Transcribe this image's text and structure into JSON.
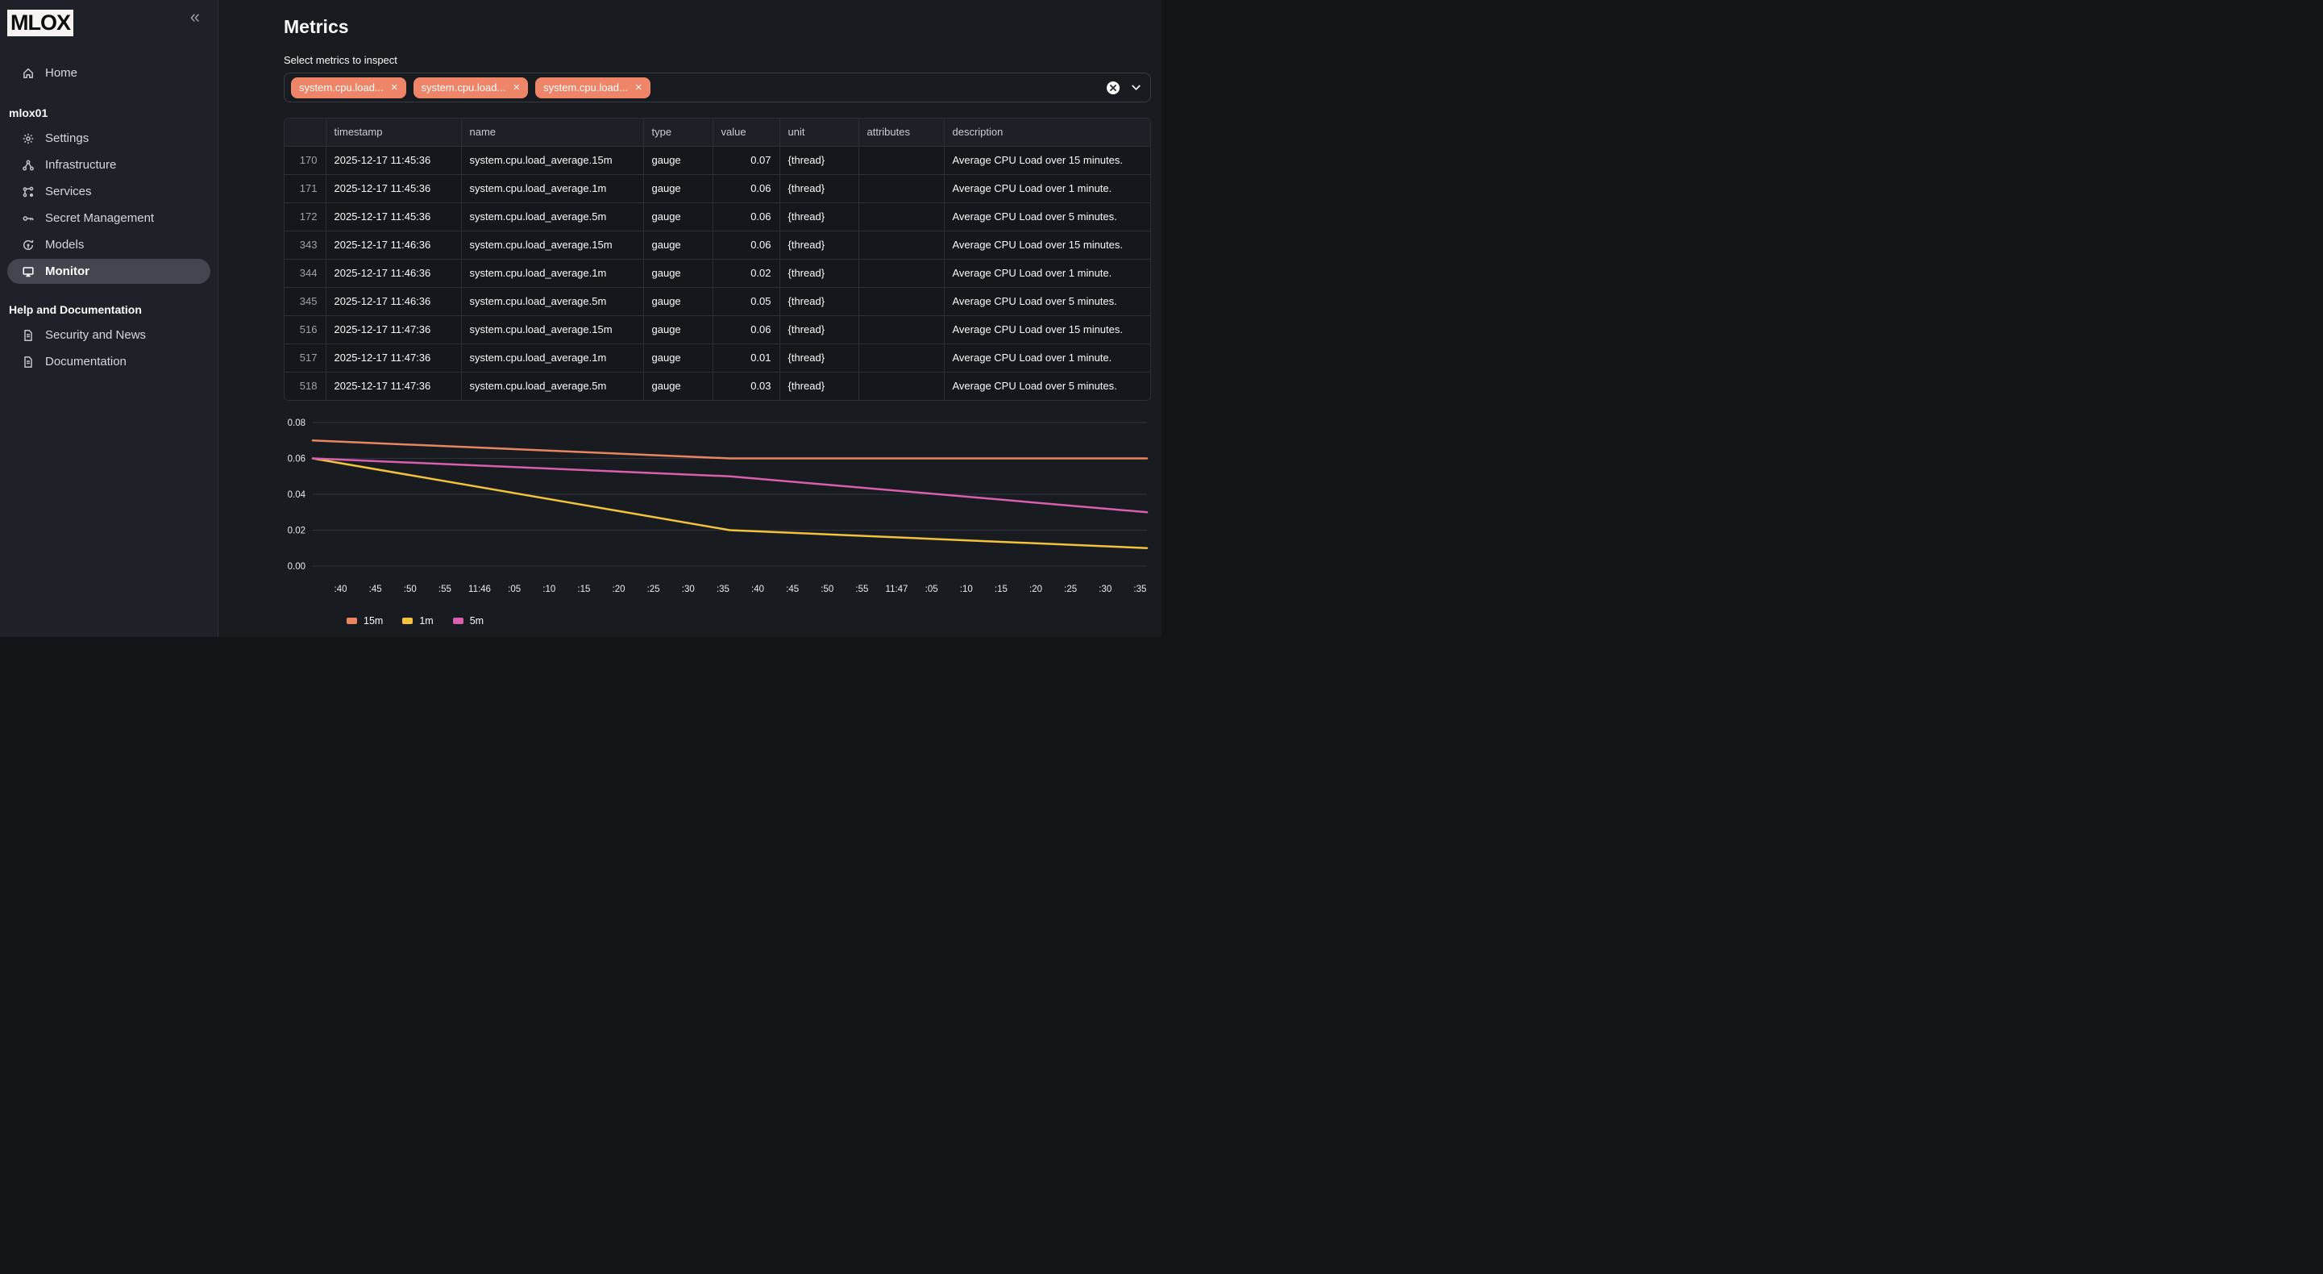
{
  "app": {
    "logo_text": "MLOX",
    "collapse_icon": "«"
  },
  "sidebar": {
    "home": {
      "label": "Home"
    },
    "sections": [
      {
        "header": "mlox01",
        "items": [
          {
            "label": "Settings",
            "icon": "gear-icon",
            "selected": false
          },
          {
            "label": "Infrastructure",
            "icon": "network-icon",
            "selected": false
          },
          {
            "label": "Services",
            "icon": "workflow-icon",
            "selected": false
          },
          {
            "label": "Secret Management",
            "icon": "key-icon",
            "selected": false
          },
          {
            "label": "Models",
            "icon": "model-icon",
            "selected": false
          },
          {
            "label": "Monitor",
            "icon": "monitor-icon",
            "selected": true
          }
        ]
      },
      {
        "header": "Help and Documentation",
        "items": [
          {
            "label": "Security and News",
            "icon": "document-icon",
            "selected": false
          },
          {
            "label": "Documentation",
            "icon": "document-icon",
            "selected": false
          }
        ]
      }
    ]
  },
  "page": {
    "title": "Metrics",
    "select_label": "Select metrics to inspect"
  },
  "multiselect": {
    "tags": [
      {
        "label": "system.cpu.load..."
      },
      {
        "label": "system.cpu.load..."
      },
      {
        "label": "system.cpu.load..."
      }
    ],
    "remove_symbol": "×"
  },
  "table": {
    "columns": [
      "",
      "timestamp",
      "name",
      "type",
      "value",
      "unit",
      "attributes",
      "description"
    ],
    "align": [
      "right",
      "left",
      "left",
      "left",
      "right",
      "left",
      "left",
      "left"
    ],
    "rows": [
      [
        "170",
        "2025-12-17 11:45:36",
        "system.cpu.load_average.15m",
        "gauge",
        "0.07",
        "{thread}",
        "",
        "Average CPU Load over 15 minutes."
      ],
      [
        "171",
        "2025-12-17 11:45:36",
        "system.cpu.load_average.1m",
        "gauge",
        "0.06",
        "{thread}",
        "",
        "Average CPU Load over 1 minute."
      ],
      [
        "172",
        "2025-12-17 11:45:36",
        "system.cpu.load_average.5m",
        "gauge",
        "0.06",
        "{thread}",
        "",
        "Average CPU Load over 5 minutes."
      ],
      [
        "343",
        "2025-12-17 11:46:36",
        "system.cpu.load_average.15m",
        "gauge",
        "0.06",
        "{thread}",
        "",
        "Average CPU Load over 15 minutes."
      ],
      [
        "344",
        "2025-12-17 11:46:36",
        "system.cpu.load_average.1m",
        "gauge",
        "0.02",
        "{thread}",
        "",
        "Average CPU Load over 1 minute."
      ],
      [
        "345",
        "2025-12-17 11:46:36",
        "system.cpu.load_average.5m",
        "gauge",
        "0.05",
        "{thread}",
        "",
        "Average CPU Load over 5 minutes."
      ],
      [
        "516",
        "2025-12-17 11:47:36",
        "system.cpu.load_average.15m",
        "gauge",
        "0.06",
        "{thread}",
        "",
        "Average CPU Load over 15 minutes."
      ],
      [
        "517",
        "2025-12-17 11:47:36",
        "system.cpu.load_average.1m",
        "gauge",
        "0.01",
        "{thread}",
        "",
        "Average CPU Load over 1 minute."
      ],
      [
        "518",
        "2025-12-17 11:47:36",
        "system.cpu.load_average.5m",
        "gauge",
        "0.03",
        "{thread}",
        "",
        "Average CPU Load over 5 minutes."
      ]
    ]
  },
  "chart_data": {
    "type": "line",
    "title": "",
    "xlabel": "",
    "ylabel": "",
    "x_timestamps": [
      "11:45:36",
      "11:46:36",
      "11:47:36"
    ],
    "x_offsets_sec": [
      0,
      60,
      120
    ],
    "x_range_sec": [
      0,
      120
    ],
    "ylim": [
      0,
      0.08
    ],
    "yticks": [
      0.08,
      0.06,
      0.04,
      0.02,
      0.0
    ],
    "grid": "horizontal",
    "legend_position": "bottom",
    "series": [
      {
        "name": "15m",
        "color": "#e98561",
        "values": [
          0.07,
          0.06,
          0.06
        ]
      },
      {
        "name": "1m",
        "color": "#f3c33d",
        "values": [
          0.06,
          0.02,
          0.01
        ]
      },
      {
        "name": "5m",
        "color": "#da5fae",
        "values": [
          0.06,
          0.05,
          0.03
        ]
      }
    ],
    "xticks": [
      {
        "label": ":40",
        "sec": 4
      },
      {
        "label": ":45",
        "sec": 9
      },
      {
        "label": ":50",
        "sec": 14
      },
      {
        "label": ":55",
        "sec": 19
      },
      {
        "label": "11:46",
        "sec": 24
      },
      {
        "label": ":05",
        "sec": 29
      },
      {
        "label": ":10",
        "sec": 34
      },
      {
        "label": ":15",
        "sec": 39
      },
      {
        "label": ":20",
        "sec": 44
      },
      {
        "label": ":25",
        "sec": 49
      },
      {
        "label": ":30",
        "sec": 54
      },
      {
        "label": ":35",
        "sec": 59
      },
      {
        "label": ":40",
        "sec": 64
      },
      {
        "label": ":45",
        "sec": 69
      },
      {
        "label": ":50",
        "sec": 74
      },
      {
        "label": ":55",
        "sec": 79
      },
      {
        "label": "11:47",
        "sec": 84
      },
      {
        "label": ":05",
        "sec": 89
      },
      {
        "label": ":10",
        "sec": 94
      },
      {
        "label": ":15",
        "sec": 99
      },
      {
        "label": ":20",
        "sec": 104
      },
      {
        "label": ":25",
        "sec": 109
      },
      {
        "label": ":30",
        "sec": 114
      },
      {
        "label": ":35",
        "sec": 119
      }
    ]
  },
  "colors": {
    "tag_background": "#ee8468",
    "sidebar_selected": "#43464e",
    "gridline": "#30333b"
  }
}
